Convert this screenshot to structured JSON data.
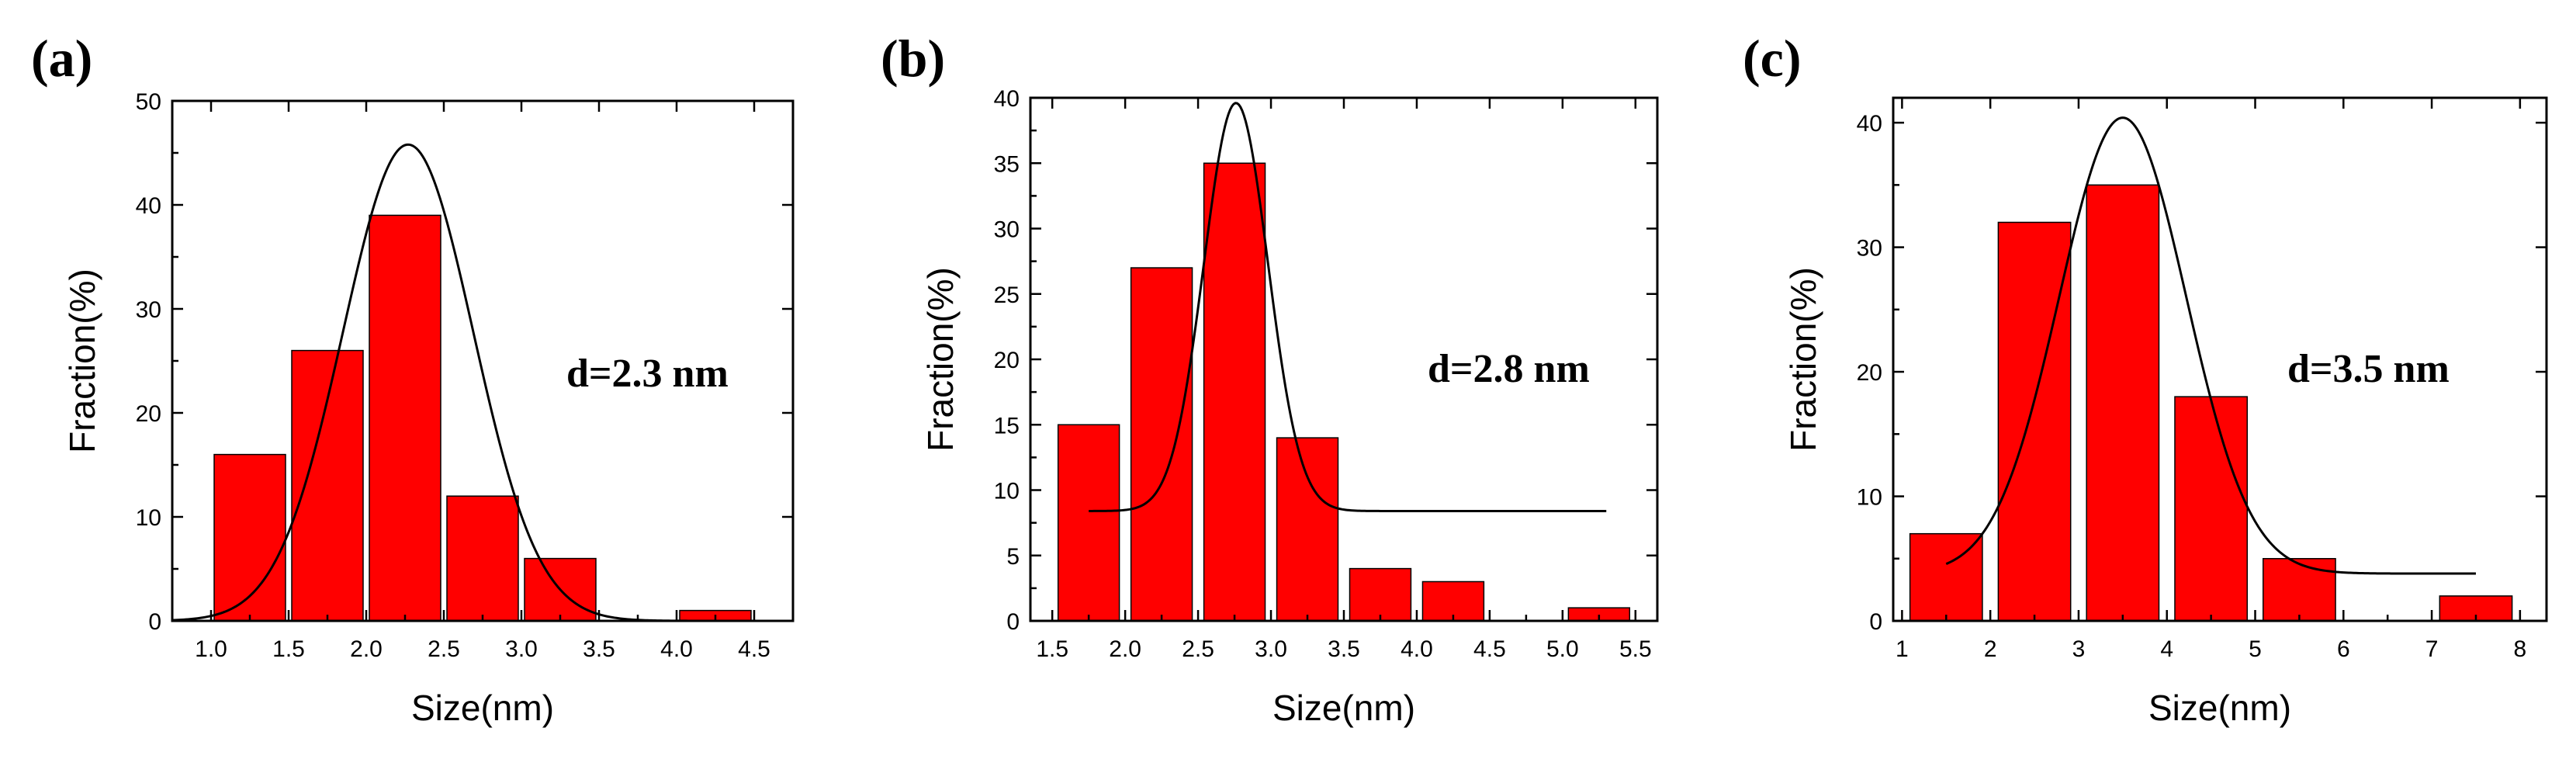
{
  "chart_data": [
    {
      "type": "bar",
      "panel_label": "(a)",
      "title": "",
      "xlabel": "Size(nm)",
      "ylabel": "Fraction(%)",
      "annotation": "d=2.3 nm",
      "xlim": [
        0.75,
        4.75
      ],
      "ylim": [
        0,
        50
      ],
      "xticks": [
        1.0,
        1.5,
        2.0,
        2.5,
        3.0,
        3.5,
        4.0,
        4.5
      ],
      "xtick_labels": [
        "1.0",
        "1.5",
        "2.0",
        "2.5",
        "3.0",
        "3.5",
        "4.0",
        "4.5"
      ],
      "yticks": [
        0,
        10,
        20,
        30,
        40,
        50
      ],
      "ytick_labels": [
        "0",
        "10",
        "20",
        "30",
        "40",
        "50"
      ],
      "bar_centers": [
        1.25,
        1.75,
        2.25,
        2.75,
        3.25,
        4.25
      ],
      "bar_width": 0.46,
      "values": [
        16,
        26,
        39,
        12,
        6,
        1
      ],
      "fit": {
        "type": "gaussian",
        "baseline": 0,
        "amplitude": 45.8,
        "center": 2.27,
        "sigma": 0.42,
        "x_range": [
          0.75,
          4.5
        ]
      },
      "color": "#ff0000"
    },
    {
      "type": "bar",
      "panel_label": "(b)",
      "title": "",
      "xlabel": "Size(nm)",
      "ylabel": "Fraction(%)",
      "annotation": "d=2.8 nm",
      "xlim": [
        1.35,
        5.65
      ],
      "ylim": [
        0,
        40
      ],
      "xticks": [
        1.5,
        2.0,
        2.5,
        3.0,
        3.5,
        4.0,
        4.5,
        5.0,
        5.5
      ],
      "xtick_labels": [
        "1.5",
        "2.0",
        "2.5",
        "3.0",
        "3.5",
        "4.0",
        "4.5",
        "5.0",
        "5.5"
      ],
      "yticks": [
        0,
        5,
        10,
        15,
        20,
        25,
        30,
        35,
        40
      ],
      "ytick_labels": [
        "0",
        "5",
        "10",
        "15",
        "20",
        "25",
        "30",
        "35",
        "40"
      ],
      "bar_centers": [
        1.75,
        2.25,
        2.75,
        3.25,
        3.75,
        4.25,
        5.25
      ],
      "bar_width": 0.42,
      "values": [
        15,
        27,
        35,
        14,
        4,
        3,
        1
      ],
      "fit": {
        "type": "gaussian",
        "baseline": 8.4,
        "amplitude": 31.2,
        "center": 2.76,
        "sigma": 0.22,
        "x_range": [
          1.75,
          5.3
        ]
      },
      "color": "#ff0000"
    },
    {
      "type": "bar",
      "panel_label": "(c)",
      "title": "",
      "xlabel": "Size(nm)",
      "ylabel": "Fraction(%)",
      "annotation": "d=3.5 nm",
      "xlim": [
        0.9,
        8.3
      ],
      "ylim": [
        0,
        42
      ],
      "xticks": [
        1,
        2,
        3,
        4,
        5,
        6,
        7,
        8
      ],
      "xtick_labels": [
        "1",
        "2",
        "3",
        "4",
        "5",
        "6",
        "7",
        "8"
      ],
      "yticks": [
        0,
        10,
        20,
        30,
        40
      ],
      "ytick_labels": [
        "0",
        "10",
        "20",
        "30",
        "40"
      ],
      "bar_centers": [
        1.5,
        2.5,
        3.5,
        4.5,
        5.5,
        7.5
      ],
      "bar_width": 0.82,
      "values": [
        7,
        32,
        35,
        18,
        5,
        2
      ],
      "fit": {
        "type": "gaussian",
        "baseline": 3.8,
        "amplitude": 36.6,
        "center": 3.5,
        "sigma": 0.72,
        "x_range": [
          1.5,
          7.5
        ]
      },
      "color": "#ff0000"
    }
  ]
}
